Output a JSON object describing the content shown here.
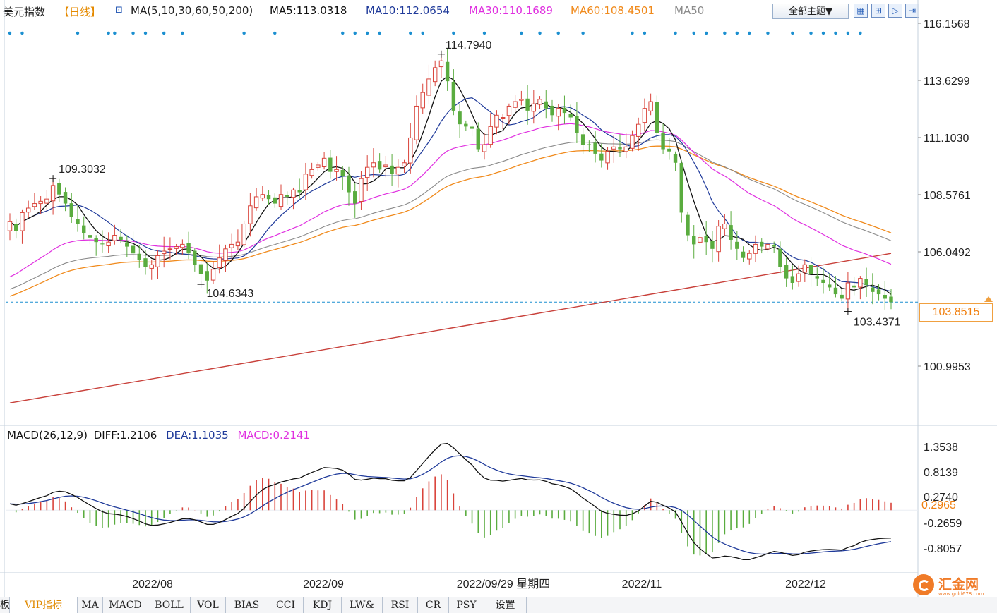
{
  "header": {
    "name": "美元指数",
    "period": "【日线】",
    "ma_label": "MA(5,10,30,60,50,200)",
    "ma5": "MA5:113.0318",
    "ma10": "MA10:112.0654",
    "ma30": "MA30:110.1689",
    "ma60": "MA60:108.4501",
    "ma50": "MA50",
    "theme_button": "全部主题▼"
  },
  "colors": {
    "up": "#d9433a",
    "down": "#5aac3f",
    "ma5": "#111111",
    "ma10": "#1f3a9a",
    "ma30": "#e030e0",
    "ma50": "#8a8a8a",
    "ma60": "#f08a1c",
    "ma200": "#c8403a",
    "grid": "#d7e0ea",
    "dotted": "#1b8fd0"
  },
  "price_axis": [
    "116.1568",
    "113.6299",
    "111.1030",
    "108.5761",
    "106.0492",
    "100.9953"
  ],
  "macd_axis": [
    "1.3538",
    "0.8139",
    "0.2740",
    "-0.2659",
    "-0.8057"
  ],
  "annotations": {
    "high_1": "109.3032",
    "low_1": "104.6343",
    "high_2": "114.7940",
    "low_2": "103.4371",
    "current_price": "103.8515",
    "macd_current": "0.2965",
    "cursor_date": "2022/09/29 星期四"
  },
  "x_labels": [
    "2022/08",
    "2022/09",
    "2022/11",
    "2022/12"
  ],
  "macd_header": {
    "name": "MACD(26,12,9)",
    "diff": "DIFF:1.2106",
    "dea": "DEA:1.1035",
    "macd": "MACD:0.2141"
  },
  "tabs": [
    "板",
    "VIP指标",
    "MA",
    "MACD",
    "BOLL",
    "VOL",
    "BIAS",
    "CCI",
    "KDJ",
    "LW&",
    "RSI",
    "CR",
    "PSY",
    "设置"
  ],
  "logo": {
    "name": "汇金网",
    "url_text": "www.gold678.com"
  },
  "chart_data": {
    "type": "candlestick",
    "instrument": "美元指数",
    "y_ticks": [
      116.1568,
      113.6299,
      111.103,
      108.5761,
      106.0492,
      100.9953
    ],
    "macd_ticks": [
      1.3538,
      0.8139,
      0.274,
      -0.2659,
      -0.8057
    ],
    "closes": [
      107.4,
      107.0,
      107.8,
      108.0,
      108.2,
      108.3,
      108.4,
      109.0,
      108.6,
      108.2,
      107.6,
      107.3,
      106.9,
      106.7,
      106.5,
      106.4,
      106.5,
      106.8,
      106.6,
      106.3,
      106.0,
      105.7,
      105.4,
      105.5,
      105.9,
      106.1,
      106.2,
      106.3,
      106.4,
      106.0,
      105.5,
      105.1,
      104.8,
      105.3,
      105.8,
      106.2,
      106.4,
      106.5,
      107.3,
      108.1,
      108.5,
      108.6,
      108.4,
      108.2,
      108.6,
      108.5,
      108.8,
      108.7,
      109.5,
      109.7,
      109.9,
      110.2,
      109.6,
      109.7,
      109.4,
      108.7,
      108.2,
      109.3,
      109.8,
      110.0,
      109.7,
      109.9,
      109.5,
      109.8,
      110.0,
      111.1,
      112.5,
      113.1,
      113.7,
      114.2,
      114.5,
      113.6,
      112.3,
      111.7,
      111.6,
      111.5,
      110.6,
      110.8,
      111.6,
      112.1,
      112.0,
      112.5,
      112.7,
      112.8,
      112.3,
      112.6,
      112.8,
      112.4,
      112.1,
      112.4,
      112.2,
      112.0,
      111.3,
      110.8,
      110.8,
      110.4,
      110.1,
      110.5,
      110.7,
      110.6,
      110.7,
      111.2,
      111.7,
      112.4,
      112.7,
      111.3,
      110.6,
      110.5,
      110.0,
      107.8,
      106.8,
      106.4,
      106.7,
      106.5,
      106.2,
      107.2,
      107.3,
      106.6,
      106.2,
      105.8,
      106.0,
      106.4,
      106.3,
      106.4,
      106.3,
      105.4,
      104.9,
      104.7,
      105.1,
      105.5,
      105.1,
      104.9,
      104.7,
      104.5,
      104.2,
      104.0,
      104.7,
      104.5,
      104.9,
      104.6,
      104.3,
      104.2,
      104.0,
      103.85
    ],
    "ma200_range": [
      99.4,
      106.0
    ],
    "annotated_values": {
      "high_jul": 109.3032,
      "low_aug": 104.6343,
      "high_sep": 114.794,
      "low_dec": 103.4371,
      "last": 103.8515,
      "macd_last": 0.2965
    },
    "macd_indicator": {
      "diff": 1.2106,
      "dea": 1.1035,
      "macd": 0.2141
    },
    "x_labels": [
      "2022/08",
      "2022/09",
      "2022/11",
      "2022/12"
    ]
  }
}
